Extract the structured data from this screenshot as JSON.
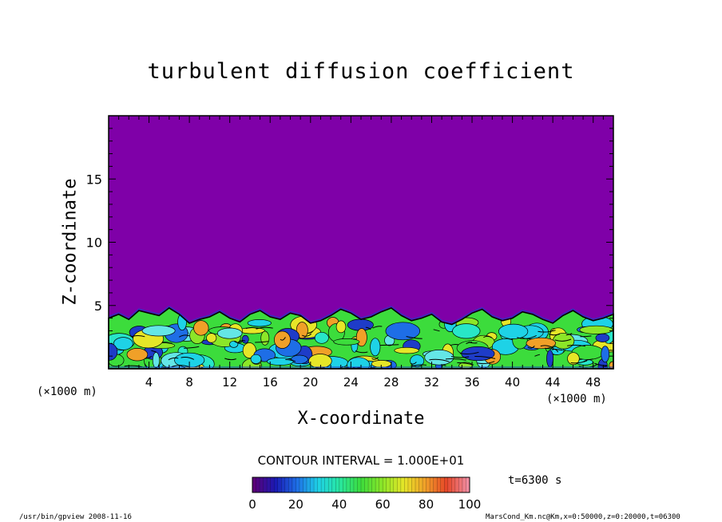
{
  "chart_data": {
    "type": "heatmap",
    "title": "turbulent diffusion coefficient",
    "xlabel": "X-coordinate",
    "ylabel": "Z-coordinate",
    "x_unit": "(×1000 m)",
    "y_unit": "(×1000 m)",
    "xlim": [
      0,
      50
    ],
    "ylim": [
      0,
      20
    ],
    "x_ticks": [
      "4",
      "8",
      "12",
      "16",
      "20",
      "24",
      "28",
      "32",
      "36",
      "40",
      "44",
      "48"
    ],
    "y_ticks": [
      "5",
      "10",
      "15"
    ],
    "contour_interval": "CONTOUR INTERVAL = 1.000E+01",
    "colorbar": {
      "min": 0,
      "max": 100,
      "ticks": [
        "0",
        "20",
        "40",
        "60",
        "80",
        "100"
      ],
      "colors": [
        "#5a0078",
        "#1a1ab4",
        "#1e6ee6",
        "#1ed2e6",
        "#28e6a0",
        "#3cdc3c",
        "#8ce628",
        "#e6e628",
        "#f0a028",
        "#e64628",
        "#f08ca0"
      ]
    },
    "background_value_color": "#7f00a8",
    "boundary_layer_top_km": [
      4.0,
      4.3,
      3.9,
      4.6,
      4.4,
      4.2,
      4.8,
      4.3,
      3.6,
      3.9,
      4.1,
      4.5,
      4.0,
      3.7,
      4.3,
      4.6,
      4.1,
      3.9,
      4.4,
      4.2,
      3.6,
      3.8,
      4.2,
      4.7,
      4.4,
      3.9,
      4.1,
      4.5,
      4.8,
      4.2,
      3.8,
      4.0,
      4.3,
      3.7,
      3.5,
      3.9,
      4.4,
      4.7,
      4.1,
      3.8,
      4.0,
      4.5,
      4.3,
      3.9,
      3.6,
      4.2,
      4.6,
      4.1,
      3.8,
      4.0,
      4.3
    ],
    "time": "t=6300 s"
  },
  "footer": {
    "left": "/usr/bin/gpview  2008-11-16",
    "right": "MarsCond_Km.nc@Km,x=0:50000,z=0:20000,t=06300"
  }
}
